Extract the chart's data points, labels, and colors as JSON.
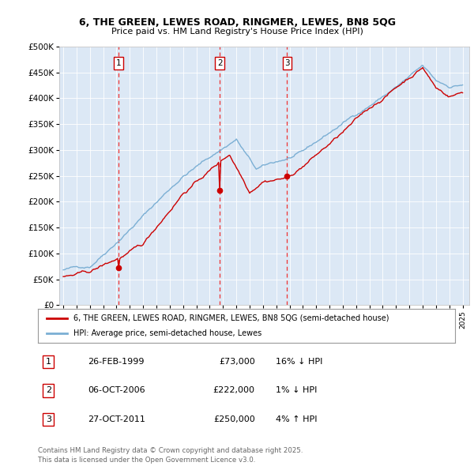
{
  "title": "6, THE GREEN, LEWES ROAD, RINGMER, LEWES, BN8 5QG",
  "subtitle": "Price paid vs. HM Land Registry's House Price Index (HPI)",
  "background_color": "#e8f0f8",
  "plot_bg_color": "#dce8f5",
  "ylim": [
    0,
    500000
  ],
  "yticks": [
    0,
    50000,
    100000,
    150000,
    200000,
    250000,
    300000,
    350000,
    400000,
    450000,
    500000
  ],
  "ytick_labels": [
    "£0",
    "£50K",
    "£100K",
    "£150K",
    "£200K",
    "£250K",
    "£300K",
    "£350K",
    "£400K",
    "£450K",
    "£500K"
  ],
  "xlim_start": 1994.7,
  "xlim_end": 2025.5,
  "xtick_years": [
    1995,
    1996,
    1997,
    1998,
    1999,
    2000,
    2001,
    2002,
    2003,
    2004,
    2005,
    2006,
    2007,
    2008,
    2009,
    2010,
    2011,
    2012,
    2013,
    2014,
    2015,
    2016,
    2017,
    2018,
    2019,
    2020,
    2021,
    2022,
    2023,
    2024,
    2025
  ],
  "sale_dates": [
    1999.15,
    2006.76,
    2011.82
  ],
  "sale_prices": [
    73000,
    222000,
    250000
  ],
  "sale_labels": [
    "1",
    "2",
    "3"
  ],
  "legend_line1": "6, THE GREEN, LEWES ROAD, RINGMER, LEWES, BN8 5QG (semi-detached house)",
  "legend_line2": "HPI: Average price, semi-detached house, Lewes",
  "table_data": [
    [
      "1",
      "26-FEB-1999",
      "£73,000",
      "16% ↓ HPI"
    ],
    [
      "2",
      "06-OCT-2006",
      "£222,000",
      "1% ↓ HPI"
    ],
    [
      "3",
      "27-OCT-2011",
      "£250,000",
      "4% ↑ HPI"
    ]
  ],
  "footer": "Contains HM Land Registry data © Crown copyright and database right 2025.\nThis data is licensed under the Open Government Licence v3.0.",
  "red_color": "#cc0000",
  "blue_color": "#7bafd4",
  "grid_color": "#c8d8e8"
}
